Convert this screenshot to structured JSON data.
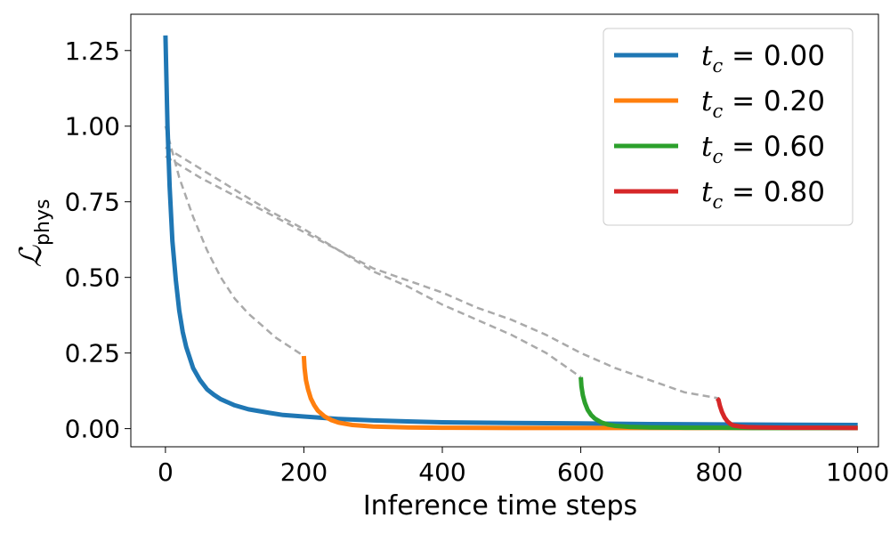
{
  "chart_data": {
    "type": "line",
    "xlabel": "Inference time steps",
    "ylabel": {
      "main": "ℒ",
      "sub": "phys"
    },
    "xlim": [
      -50,
      1030
    ],
    "ylim": [
      -0.06,
      1.37
    ],
    "xticks": [
      0,
      200,
      400,
      600,
      800,
      1000
    ],
    "xtick_labels": [
      "0",
      "200",
      "400",
      "600",
      "800",
      "1000"
    ],
    "yticks": [
      0.0,
      0.25,
      0.5,
      0.75,
      1.0,
      1.25
    ],
    "ytick_labels": [
      "0.00",
      "0.25",
      "0.50",
      "0.75",
      "1.00",
      "1.25"
    ],
    "grid": false,
    "legend_position": "top-right",
    "series": [
      {
        "name": {
          "var": "t",
          "sub": "c",
          "rest": " = 0.00"
        },
        "color": "#1f77b4",
        "style": "solid",
        "x": [
          0,
          3,
          6,
          10,
          15,
          20,
          25,
          30,
          40,
          50,
          60,
          70,
          80,
          100,
          120,
          150,
          170,
          200,
          250,
          300,
          350,
          400,
          500,
          600,
          700,
          800,
          900,
          1000
        ],
        "y": [
          1.3,
          1.0,
          0.8,
          0.62,
          0.49,
          0.39,
          0.32,
          0.27,
          0.2,
          0.16,
          0.13,
          0.112,
          0.097,
          0.077,
          0.064,
          0.052,
          0.045,
          0.04,
          0.032,
          0.027,
          0.024,
          0.021,
          0.019,
          0.017,
          0.015,
          0.014,
          0.013,
          0.012
        ]
      },
      {
        "name": {
          "var": "t",
          "sub": "c",
          "rest": " = 0.20"
        },
        "color": "#ff7f0e",
        "style": "solid",
        "x": [
          200,
          201,
          203,
          206,
          210,
          215,
          220,
          230,
          240,
          250,
          270,
          300,
          350,
          400,
          500,
          600,
          700,
          800,
          900,
          1000
        ],
        "y": [
          0.24,
          0.2,
          0.16,
          0.13,
          0.1,
          0.077,
          0.06,
          0.04,
          0.028,
          0.02,
          0.012,
          0.007,
          0.004,
          0.003,
          0.002,
          0.002,
          0.002,
          0.002,
          0.002,
          0.002
        ]
      },
      {
        "name": {
          "var": "t",
          "sub": "c",
          "rest": " = 0.60"
        },
        "color": "#2ca02c",
        "style": "solid",
        "x": [
          600,
          601,
          603,
          606,
          610,
          615,
          620,
          630,
          640,
          650,
          670,
          700,
          750,
          800,
          850,
          900,
          1000
        ],
        "y": [
          0.17,
          0.14,
          0.11,
          0.085,
          0.062,
          0.045,
          0.034,
          0.02,
          0.013,
          0.009,
          0.006,
          0.004,
          0.003,
          0.003,
          0.002,
          0.002,
          0.002
        ]
      },
      {
        "name": {
          "var": "t",
          "sub": "c",
          "rest": " = 0.80"
        },
        "color": "#d62728",
        "style": "solid",
        "x": [
          797,
          799,
          801,
          804,
          808,
          812,
          816,
          820,
          830,
          840,
          860,
          900,
          950,
          1000
        ],
        "y": [
          0.1,
          0.095,
          0.075,
          0.055,
          0.036,
          0.024,
          0.016,
          0.011,
          0.007,
          0.005,
          0.004,
          0.003,
          0.003,
          0.002
        ]
      },
      {
        "color": "#aaaaaa",
        "style": "dashed",
        "x": [
          0,
          20,
          40,
          60,
          80,
          100,
          120,
          140,
          160,
          180,
          200
        ],
        "y": [
          1.0,
          0.83,
          0.7,
          0.59,
          0.5,
          0.43,
          0.38,
          0.34,
          0.3,
          0.27,
          0.24
        ]
      },
      {
        "color": "#aaaaaa",
        "style": "dashed",
        "x": [
          0,
          50,
          100,
          150,
          200,
          250,
          300,
          350,
          400,
          450,
          500,
          550,
          600
        ],
        "y": [
          0.93,
          0.86,
          0.79,
          0.72,
          0.66,
          0.59,
          0.52,
          0.47,
          0.41,
          0.36,
          0.31,
          0.25,
          0.17
        ]
      },
      {
        "color": "#aaaaaa",
        "style": "dashed",
        "x": [
          0,
          50,
          100,
          150,
          200,
          250,
          300,
          350,
          400,
          450,
          500,
          550,
          600,
          650,
          700,
          750,
          800
        ],
        "y": [
          0.9,
          0.83,
          0.77,
          0.71,
          0.65,
          0.59,
          0.53,
          0.49,
          0.45,
          0.4,
          0.36,
          0.31,
          0.25,
          0.2,
          0.16,
          0.12,
          0.1
        ]
      }
    ]
  }
}
